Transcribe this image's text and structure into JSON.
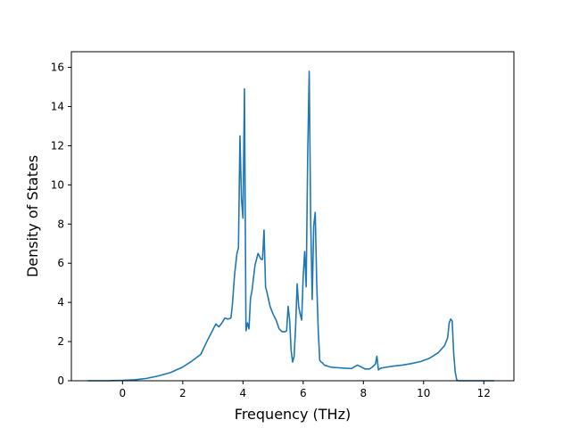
{
  "chart_data": {
    "type": "line",
    "title": "",
    "xlabel": "Frequency (THz)",
    "ylabel": "Density of States",
    "xlim": [
      -1.7,
      13.0
    ],
    "ylim": [
      0,
      16.8
    ],
    "xticks": [
      0,
      2,
      4,
      6,
      8,
      10,
      12
    ],
    "yticks": [
      0,
      2,
      4,
      6,
      8,
      10,
      12,
      14,
      16
    ],
    "grid": false,
    "legend": "none",
    "series": [
      {
        "color": "#1f77b4",
        "x": [
          -1.15,
          -0.5,
          0.0,
          0.4,
          0.8,
          1.2,
          1.6,
          2.0,
          2.3,
          2.6,
          2.8,
          3.0,
          3.1,
          3.2,
          3.3,
          3.4,
          3.5,
          3.6,
          3.65,
          3.72,
          3.8,
          3.85,
          3.9,
          3.95,
          4.0,
          4.05,
          4.1,
          4.15,
          4.2,
          4.25,
          4.3,
          4.4,
          4.5,
          4.6,
          4.65,
          4.7,
          4.75,
          4.8,
          4.9,
          5.0,
          5.1,
          5.2,
          5.3,
          5.4,
          5.45,
          5.5,
          5.55,
          5.6,
          5.65,
          5.7,
          5.75,
          5.8,
          5.85,
          5.9,
          5.95,
          6.0,
          6.05,
          6.1,
          6.15,
          6.2,
          6.25,
          6.3,
          6.35,
          6.4,
          6.45,
          6.5,
          6.55,
          6.6,
          6.65,
          6.7,
          6.8,
          6.9,
          7.0,
          7.2,
          7.4,
          7.6,
          7.8,
          8.0,
          8.05,
          8.1,
          8.2,
          8.3,
          8.4,
          8.45,
          8.5,
          8.55,
          8.6,
          8.8,
          9.0,
          9.3,
          9.6,
          9.9,
          10.2,
          10.5,
          10.7,
          10.8,
          10.85,
          10.9,
          10.95,
          11.0,
          11.05,
          11.1,
          11.15,
          11.2,
          11.3,
          11.5,
          12.0,
          12.35
        ],
        "y": [
          0.0,
          0.0,
          0.02,
          0.05,
          0.12,
          0.25,
          0.42,
          0.7,
          1.0,
          1.35,
          2.0,
          2.6,
          2.9,
          2.75,
          2.95,
          3.2,
          3.15,
          3.2,
          3.9,
          5.4,
          6.5,
          6.8,
          12.5,
          9.3,
          8.3,
          14.9,
          2.55,
          2.95,
          2.65,
          4.2,
          4.6,
          5.9,
          6.5,
          6.2,
          6.2,
          7.7,
          4.8,
          4.5,
          3.8,
          3.4,
          3.1,
          2.65,
          2.5,
          2.5,
          2.55,
          3.8,
          3.1,
          1.55,
          0.95,
          1.25,
          2.8,
          4.95,
          3.8,
          3.4,
          3.1,
          5.3,
          6.6,
          4.8,
          11.5,
          15.8,
          8.2,
          4.15,
          7.9,
          8.6,
          5.0,
          2.6,
          1.05,
          0.95,
          0.9,
          0.8,
          0.75,
          0.7,
          0.68,
          0.66,
          0.64,
          0.62,
          0.8,
          0.65,
          0.6,
          0.6,
          0.6,
          0.7,
          0.85,
          1.25,
          0.55,
          0.62,
          0.65,
          0.7,
          0.75,
          0.8,
          0.88,
          0.98,
          1.15,
          1.45,
          1.8,
          2.2,
          2.95,
          3.15,
          3.05,
          1.4,
          0.45,
          0.05,
          0.0,
          0.0,
          0.0,
          0.0,
          0.0,
          0.0
        ]
      }
    ]
  }
}
